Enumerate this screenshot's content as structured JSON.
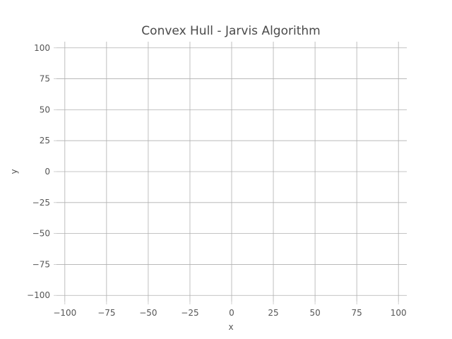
{
  "chart_data": {
    "type": "line",
    "title": "Convex Hull - Jarvis Algorithm",
    "xlabel": "x",
    "ylabel": "y",
    "xlim": [
      -105,
      105
    ],
    "ylim": [
      -105,
      105
    ],
    "x_ticks": [
      -100,
      -75,
      -50,
      -25,
      0,
      25,
      50,
      75,
      100
    ],
    "y_ticks": [
      -100,
      -75,
      -50,
      -25,
      0,
      25,
      50,
      75,
      100
    ],
    "grid": true,
    "series": []
  }
}
